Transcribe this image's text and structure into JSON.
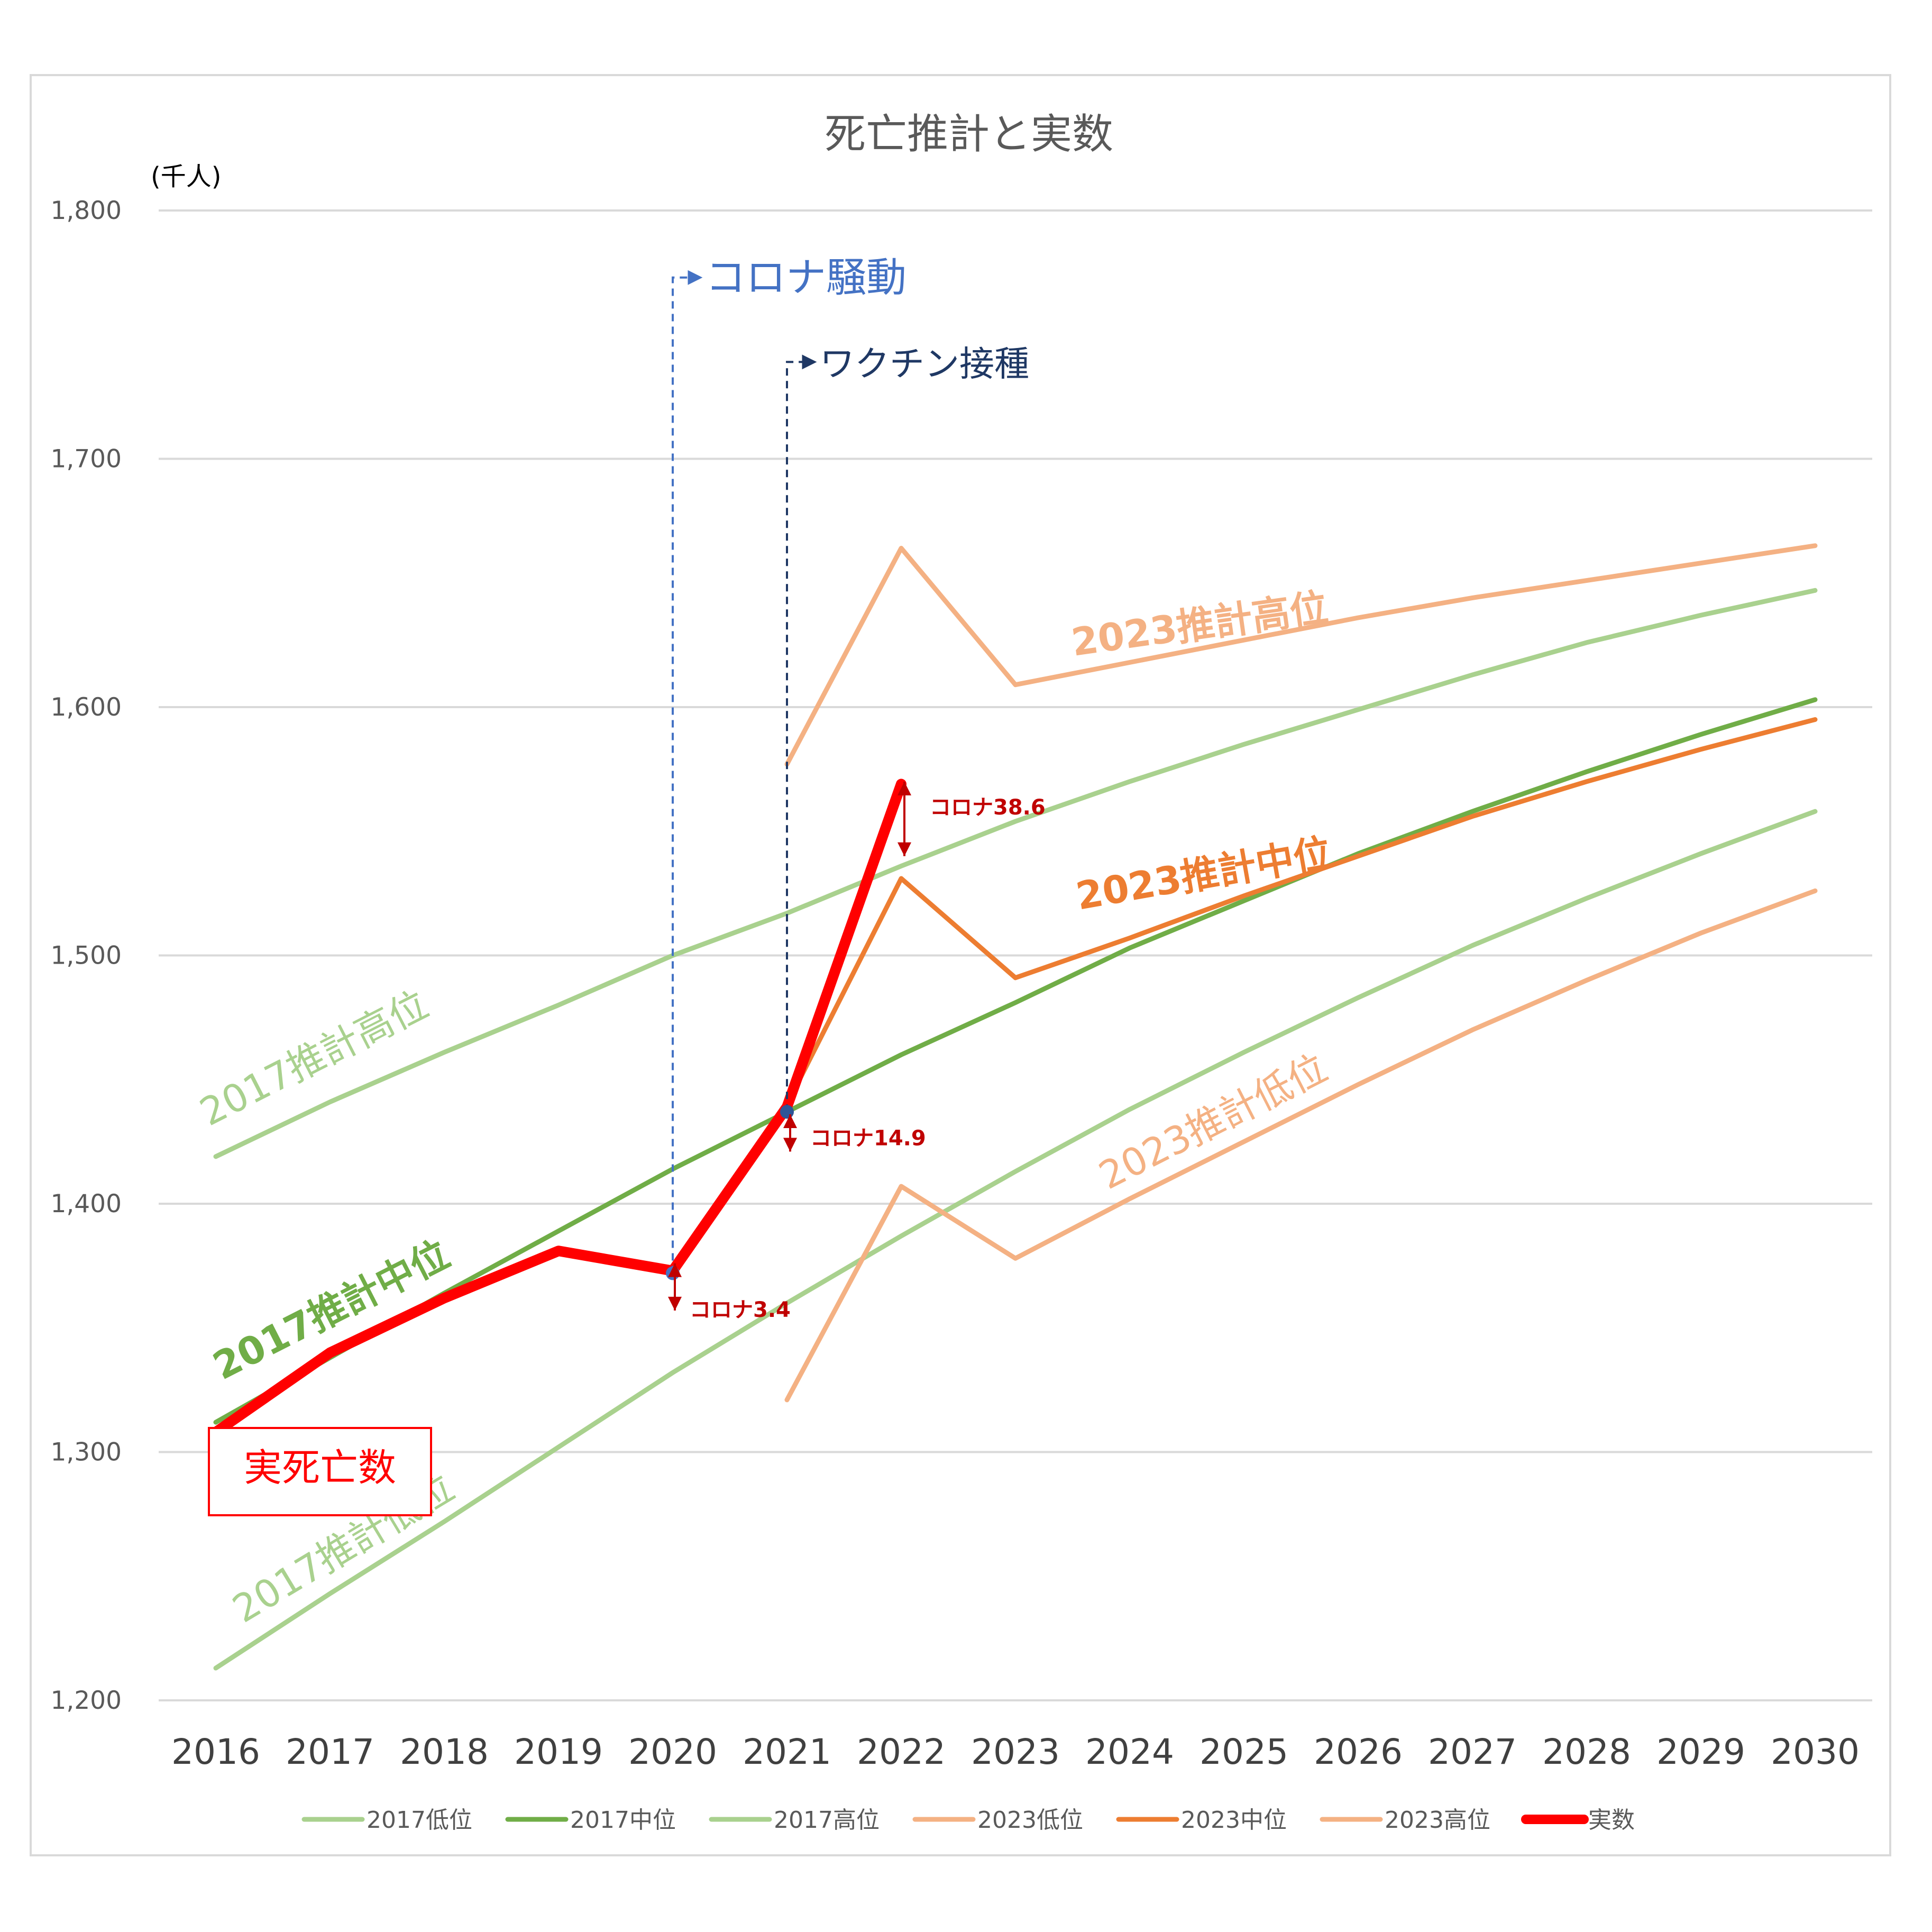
{
  "chart_data": {
    "type": "line",
    "title": "死亡推計と実数",
    "ylabel": "(千人)",
    "ylim": [
      1200,
      1800
    ],
    "yticks": [
      "1,200",
      "1,300",
      "1,400",
      "1,500",
      "1,600",
      "1,700",
      "1,800"
    ],
    "categories": [
      "2016",
      "2017",
      "2018",
      "2019",
      "2020",
      "2021",
      "2022",
      "2023",
      "2024",
      "2025",
      "2026",
      "2027",
      "2028",
      "2029",
      "2030"
    ],
    "grid": true,
    "legend_position": "bottom",
    "series": [
      {
        "name": "2017低位",
        "color": "#a9d18e",
        "width": 9,
        "values": [
          1213,
          1243,
          1272,
          1302,
          1332,
          1360,
          1387,
          1413,
          1438,
          1461,
          1483,
          1504,
          1523,
          1541,
          1558
        ]
      },
      {
        "name": "2017中位",
        "color": "#70ad47",
        "width": 9,
        "values": [
          1312,
          1338,
          1364,
          1389,
          1414,
          1437,
          1460,
          1481,
          1503,
          1522,
          1541,
          1558,
          1574,
          1589,
          1603
        ]
      },
      {
        "name": "2017高位",
        "color": "#a9d18e",
        "width": 9,
        "values": [
          1419,
          1441,
          1461,
          1480,
          1500,
          1517,
          1536,
          1554,
          1570,
          1585,
          1599,
          1613,
          1626,
          1637,
          1647
        ]
      },
      {
        "name": "2023低位",
        "color": "#f4b183",
        "width": 9,
        "values": [
          null,
          null,
          null,
          null,
          null,
          1321,
          1407,
          1378,
          1402,
          1425,
          1448,
          1470,
          1490,
          1509,
          1526
        ]
      },
      {
        "name": "2023中位",
        "color": "#ed7d31",
        "width": 9,
        "values": [
          null,
          null,
          null,
          null,
          null,
          1440,
          1531,
          1491,
          1507,
          1524,
          1540,
          1556,
          1570,
          1583,
          1595
        ]
      },
      {
        "name": "2023高位",
        "color": "#f4b183",
        "width": 9,
        "values": [
          null,
          null,
          null,
          null,
          null,
          1577,
          1664,
          1609,
          1618,
          1627,
          1636,
          1644,
          1651,
          1658,
          1665
        ]
      },
      {
        "name": "実数",
        "color": "#ff0000",
        "width": 20,
        "values": [
          1308,
          1340,
          1362,
          1381,
          1373,
          1439,
          1569,
          null,
          null,
          null,
          null,
          null,
          null,
          null,
          null
        ]
      }
    ],
    "series_labels": [
      {
        "text": "2017推計高位",
        "color": "#a9d18e",
        "bold": false
      },
      {
        "text": "2017推計中位",
        "color": "#70ad47",
        "bold": true
      },
      {
        "text": "2017推計低位",
        "color": "#a9d18e",
        "bold": false
      },
      {
        "text": "2023推計高位",
        "color": "#f4b183",
        "bold": true
      },
      {
        "text": "2023推計中位",
        "color": "#ed7d31",
        "bold": true
      },
      {
        "text": "2023推計低位",
        "color": "#f4b183",
        "bold": false
      }
    ],
    "annotations": [
      {
        "text": "コロナ騒動",
        "color": "#4472c4",
        "year": "2020",
        "from": 1372,
        "to": 1773
      },
      {
        "text": "ワクチン接種",
        "color": "#1f3864",
        "year": "2021",
        "from": 1437,
        "to": 1739
      },
      {
        "text": "コロナ3.4",
        "color": "#c00000",
        "year": "2020",
        "from": 1376,
        "to": 1357
      },
      {
        "text": "コロナ14.9",
        "color": "#c00000",
        "year": "2021",
        "from": 1436,
        "to": 1421
      },
      {
        "text": "コロナ38.6",
        "color": "#c00000",
        "year": "2022",
        "from": 1570,
        "to": 1540
      }
    ],
    "callout": "実死亡数"
  }
}
